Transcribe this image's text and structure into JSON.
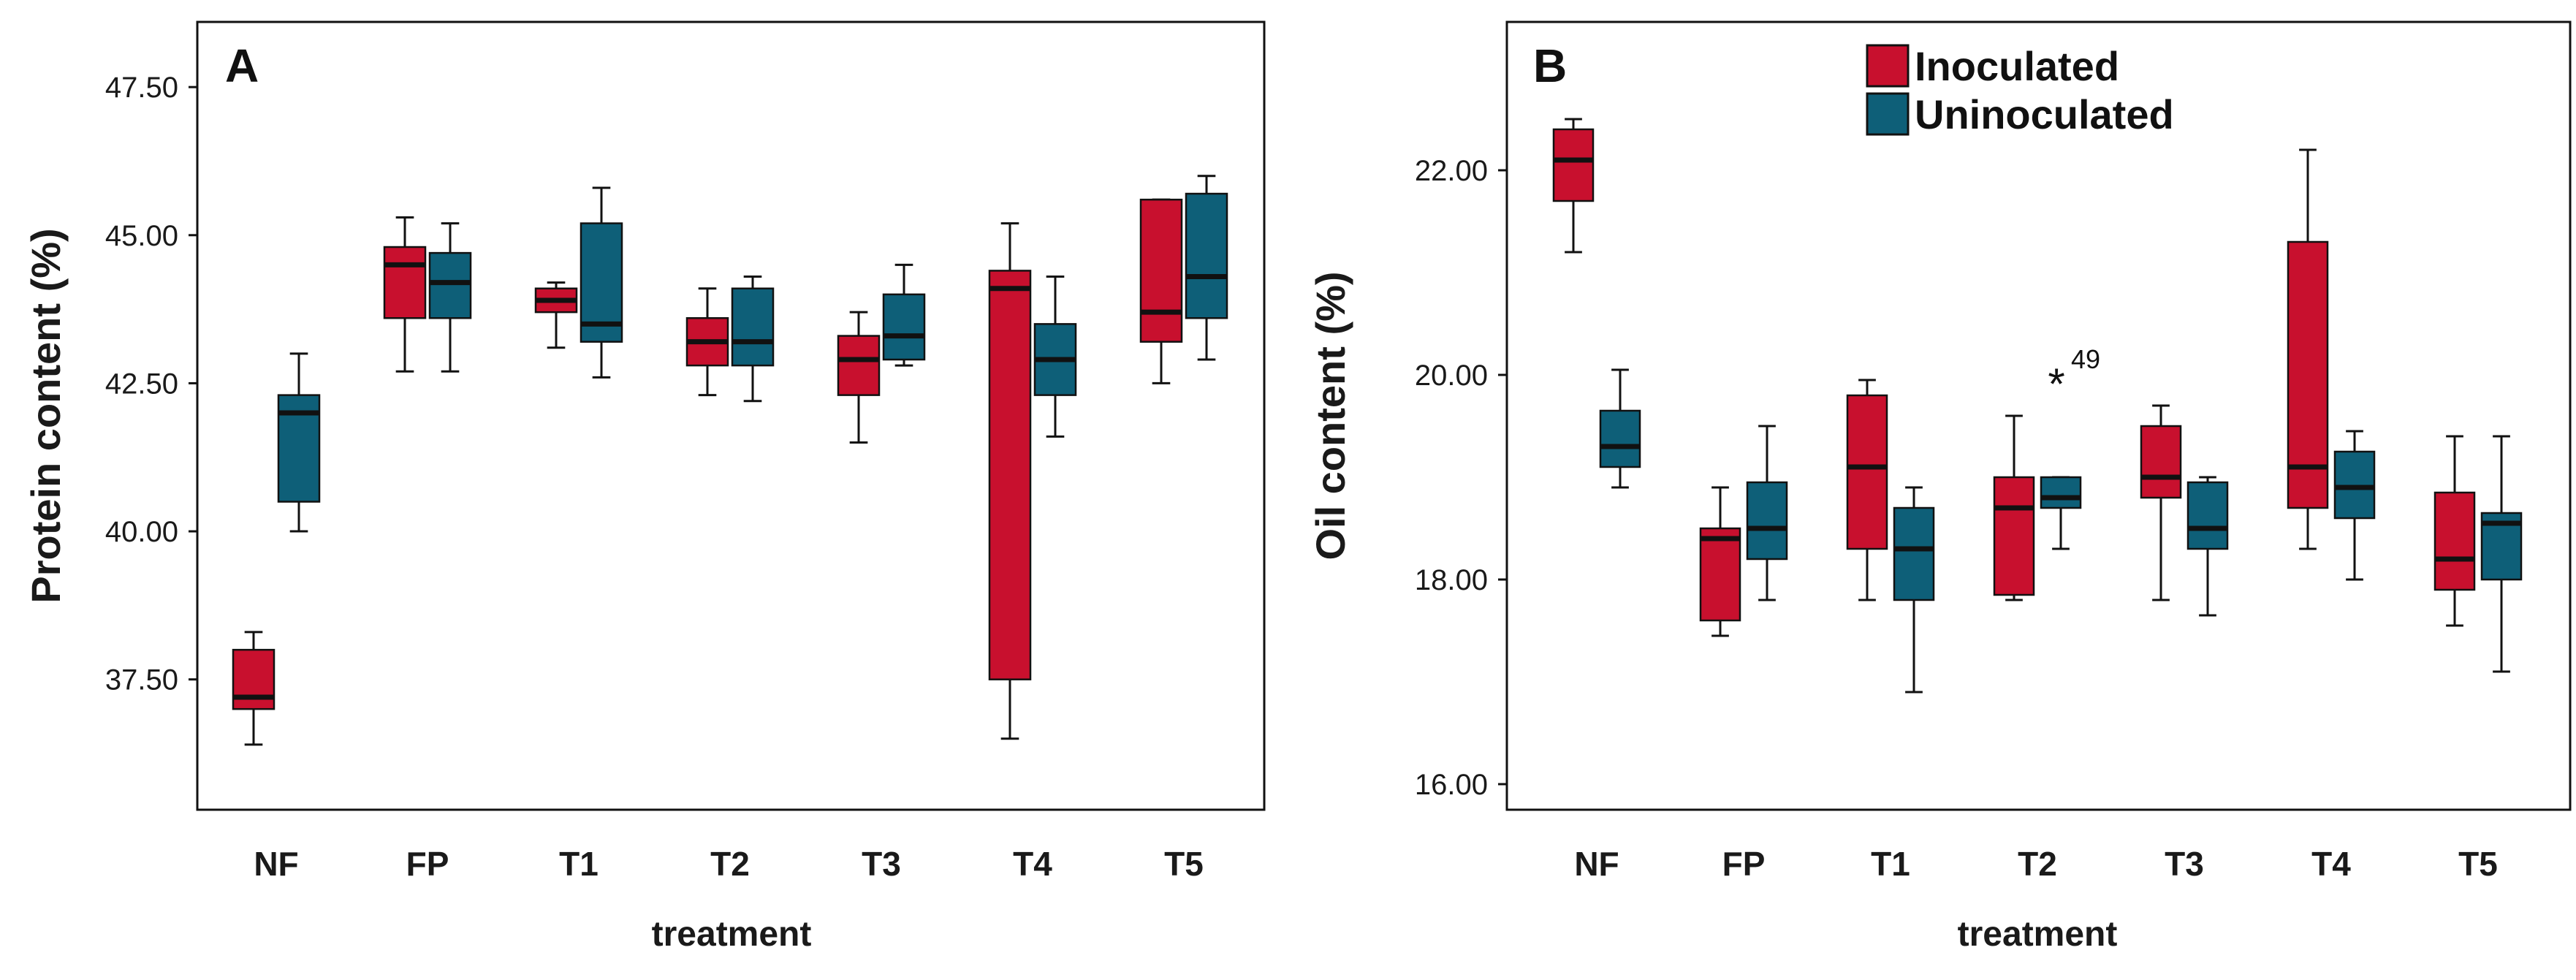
{
  "chart_data": [
    {
      "type": "boxplot",
      "panel_label": "A",
      "xlabel": "treatment",
      "ylabel": "Protein content (%)",
      "ylim": [
        35.3,
        48.6
      ],
      "yticks": [
        "37.50",
        "40.00",
        "42.50",
        "45.00",
        "47.50"
      ],
      "ytick_values": [
        37.5,
        40.0,
        42.5,
        45.0,
        47.5
      ],
      "categories": [
        "NF",
        "FP",
        "T1",
        "T2",
        "T3",
        "T4",
        "T5"
      ],
      "series": [
        {
          "name": "Inoculated",
          "color": "#c8102e",
          "boxes": [
            {
              "min": 36.4,
              "q1": 37.0,
              "median": 37.2,
              "q3": 38.0,
              "max": 38.3
            },
            {
              "min": 42.7,
              "q1": 43.6,
              "median": 44.5,
              "q3": 44.8,
              "max": 45.3
            },
            {
              "min": 43.1,
              "q1": 43.7,
              "median": 43.9,
              "q3": 44.1,
              "max": 44.2
            },
            {
              "min": 42.3,
              "q1": 42.8,
              "median": 43.2,
              "q3": 43.6,
              "max": 44.1
            },
            {
              "min": 41.5,
              "q1": 42.3,
              "median": 42.9,
              "q3": 43.3,
              "max": 43.7
            },
            {
              "min": 36.5,
              "q1": 37.5,
              "median": 44.1,
              "q3": 44.4,
              "max": 45.2
            },
            {
              "min": 42.5,
              "q1": 43.2,
              "median": 43.7,
              "q3": 45.6,
              "max": 45.6
            }
          ]
        },
        {
          "name": "Uninoculated",
          "color": "#0e5f78",
          "boxes": [
            {
              "min": 40.0,
              "q1": 40.5,
              "median": 42.0,
              "q3": 42.3,
              "max": 43.0
            },
            {
              "min": 42.7,
              "q1": 43.6,
              "median": 44.2,
              "q3": 44.7,
              "max": 45.2
            },
            {
              "min": 42.6,
              "q1": 43.2,
              "median": 43.5,
              "q3": 45.2,
              "max": 45.8
            },
            {
              "min": 42.2,
              "q1": 42.8,
              "median": 43.2,
              "q3": 44.1,
              "max": 44.3
            },
            {
              "min": 42.8,
              "q1": 42.9,
              "median": 43.3,
              "q3": 44.0,
              "max": 44.5
            },
            {
              "min": 41.6,
              "q1": 42.3,
              "median": 42.9,
              "q3": 43.5,
              "max": 44.3
            },
            {
              "min": 42.9,
              "q1": 43.6,
              "median": 44.3,
              "q3": 45.7,
              "max": 46.0
            }
          ]
        }
      ],
      "outliers": []
    },
    {
      "type": "boxplot",
      "panel_label": "B",
      "xlabel": "treatment",
      "ylabel": "Oil content (%)",
      "ylim": [
        15.75,
        23.45
      ],
      "yticks": [
        "16.00",
        "18.00",
        "20.00",
        "22.00"
      ],
      "ytick_values": [
        16.0,
        18.0,
        20.0,
        22.0
      ],
      "categories": [
        "NF",
        "FP",
        "T1",
        "T2",
        "T3",
        "T4",
        "T5"
      ],
      "legend": {
        "position": "top-center",
        "entries": [
          "Inoculated",
          "Uninoculated"
        ]
      },
      "series": [
        {
          "name": "Inoculated",
          "color": "#c8102e",
          "boxes": [
            {
              "min": 21.2,
              "q1": 21.7,
              "median": 22.1,
              "q3": 22.4,
              "max": 22.5
            },
            {
              "min": 17.45,
              "q1": 17.6,
              "median": 18.4,
              "q3": 18.5,
              "max": 18.9
            },
            {
              "min": 17.8,
              "q1": 18.3,
              "median": 19.1,
              "q3": 19.8,
              "max": 19.95
            },
            {
              "min": 17.8,
              "q1": 17.85,
              "median": 18.7,
              "q3": 19.0,
              "max": 19.6
            },
            {
              "min": 17.8,
              "q1": 18.8,
              "median": 19.0,
              "q3": 19.5,
              "max": 19.7
            },
            {
              "min": 18.3,
              "q1": 18.7,
              "median": 19.1,
              "q3": 21.3,
              "max": 22.2
            },
            {
              "min": 17.55,
              "q1": 17.9,
              "median": 18.2,
              "q3": 18.85,
              "max": 19.4
            }
          ]
        },
        {
          "name": "Uninoculated",
          "color": "#0e5f78",
          "boxes": [
            {
              "min": 18.9,
              "q1": 19.1,
              "median": 19.3,
              "q3": 19.65,
              "max": 20.05
            },
            {
              "min": 17.8,
              "q1": 18.2,
              "median": 18.5,
              "q3": 18.95,
              "max": 19.5
            },
            {
              "min": 16.9,
              "q1": 17.8,
              "median": 18.3,
              "q3": 18.7,
              "max": 18.9
            },
            {
              "min": 18.3,
              "q1": 18.7,
              "median": 18.8,
              "q3": 19.0,
              "max": 19.0
            },
            {
              "min": 17.65,
              "q1": 18.3,
              "median": 18.5,
              "q3": 18.95,
              "max": 19.0
            },
            {
              "min": 18.0,
              "q1": 18.6,
              "median": 18.9,
              "q3": 19.25,
              "max": 19.45
            },
            {
              "min": 17.1,
              "q1": 18.0,
              "median": 18.55,
              "q3": 18.65,
              "max": 19.4
            }
          ]
        }
      ],
      "outliers": [
        {
          "category": "T2",
          "series": "Uninoculated",
          "value": 19.95,
          "label": "49",
          "marker": "*"
        }
      ]
    }
  ]
}
